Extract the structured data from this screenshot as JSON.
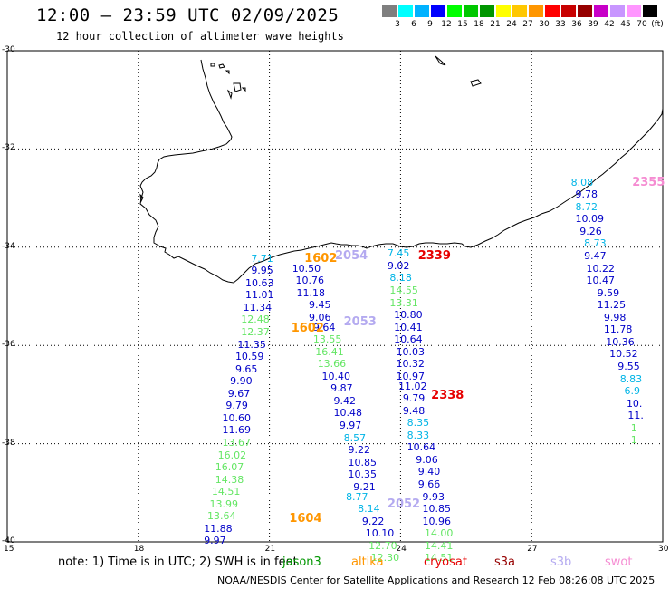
{
  "header": {
    "title": "12:00 – 23:59 UTC 02/09/2025",
    "subtitle": "12 hour collection of altimeter wave heights"
  },
  "colorbar": {
    "unit": "(ft)",
    "bins": [
      {
        "label": "3",
        "color": "#7f7f7f"
      },
      {
        "label": "6",
        "color": "#00ffff"
      },
      {
        "label": "9",
        "color": "#00b2ff"
      },
      {
        "label": "12",
        "color": "#0000ff"
      },
      {
        "label": "15",
        "color": "#00ff00"
      },
      {
        "label": "18",
        "color": "#00c800"
      },
      {
        "label": "21",
        "color": "#009600"
      },
      {
        "label": "24",
        "color": "#ffff00"
      },
      {
        "label": "27",
        "color": "#ffc800"
      },
      {
        "label": "30",
        "color": "#ff9600"
      },
      {
        "label": "33",
        "color": "#ff0000"
      },
      {
        "label": "36",
        "color": "#c80000"
      },
      {
        "label": "39",
        "color": "#960000"
      },
      {
        "label": "42",
        "color": "#c800c8"
      },
      {
        "label": "45",
        "color": "#c896ff"
      },
      {
        "label": "70",
        "color": "#ff96ff"
      },
      {
        "label": "",
        "color": "#000000"
      }
    ]
  },
  "map": {
    "lon_ticks": [
      "15",
      "18",
      "21",
      "24",
      "27",
      "30"
    ],
    "lat_ticks": [
      "-30",
      "-32",
      "-34",
      "-36",
      "-38",
      "-40"
    ]
  },
  "satellite_colors": {
    "dark_blue": "#0000c8",
    "cyan": "#00b4e6",
    "light_green": "#64e664",
    "orange": "#ff9600",
    "red": "#e60000",
    "lavender": "#b4aaf0",
    "pink": "#f58cd2"
  },
  "observations": [
    {
      "text": "7.71",
      "color": "cyan",
      "lon": 20.58,
      "lat": -34.22
    },
    {
      "text": "9.95",
      "color": "dark_blue",
      "lon": 20.58,
      "lat": -34.47
    },
    {
      "text": "10.63",
      "color": "dark_blue",
      "lon": 20.45,
      "lat": -34.72
    },
    {
      "text": "11.01",
      "color": "dark_blue",
      "lon": 20.45,
      "lat": -34.97
    },
    {
      "text": "11.34",
      "color": "dark_blue",
      "lon": 20.4,
      "lat": -35.22
    },
    {
      "text": "12.48",
      "color": "light_green",
      "lon": 20.35,
      "lat": -35.47
    },
    {
      "text": "12.37",
      "color": "light_green",
      "lon": 20.35,
      "lat": -35.72
    },
    {
      "text": "11.35",
      "color": "dark_blue",
      "lon": 20.27,
      "lat": -35.97
    },
    {
      "text": "10.59",
      "color": "dark_blue",
      "lon": 20.22,
      "lat": -36.22
    },
    {
      "text": "9.65",
      "color": "dark_blue",
      "lon": 20.22,
      "lat": -36.47
    },
    {
      "text": "9.90",
      "color": "dark_blue",
      "lon": 20.1,
      "lat": -36.72
    },
    {
      "text": "9.67",
      "color": "dark_blue",
      "lon": 20.05,
      "lat": -36.97
    },
    {
      "text": "9.79",
      "color": "dark_blue",
      "lon": 20.0,
      "lat": -37.22
    },
    {
      "text": "10.60",
      "color": "dark_blue",
      "lon": 19.92,
      "lat": -37.47
    },
    {
      "text": "11.69",
      "color": "dark_blue",
      "lon": 19.92,
      "lat": -37.72
    },
    {
      "text": "13.67",
      "color": "light_green",
      "lon": 19.92,
      "lat": -37.97
    },
    {
      "text": "16.02",
      "color": "light_green",
      "lon": 19.82,
      "lat": -38.22
    },
    {
      "text": "16.07",
      "color": "light_green",
      "lon": 19.76,
      "lat": -38.47
    },
    {
      "text": "14.38",
      "color": "light_green",
      "lon": 19.76,
      "lat": -38.72
    },
    {
      "text": "14.51",
      "color": "light_green",
      "lon": 19.68,
      "lat": -38.97
    },
    {
      "text": "13.99",
      "color": "light_green",
      "lon": 19.63,
      "lat": -39.22
    },
    {
      "text": "13.64",
      "color": "light_green",
      "lon": 19.58,
      "lat": -39.47
    },
    {
      "text": "11.88",
      "color": "dark_blue",
      "lon": 19.5,
      "lat": -39.72
    },
    {
      "text": "9.97",
      "color": "dark_blue",
      "lon": 19.5,
      "lat": -39.97
    },
    {
      "text": "10.50",
      "color": "dark_blue",
      "lon": 21.52,
      "lat": -34.42
    },
    {
      "text": "10.76",
      "color": "dark_blue",
      "lon": 21.6,
      "lat": -34.67
    },
    {
      "text": "11.18",
      "color": "dark_blue",
      "lon": 21.62,
      "lat": -34.92
    },
    {
      "text": "9.45",
      "color": "dark_blue",
      "lon": 21.9,
      "lat": -35.17
    },
    {
      "text": "9.06",
      "color": "dark_blue",
      "lon": 21.9,
      "lat": -35.42
    },
    {
      "text": "9.64",
      "color": "dark_blue",
      "lon": 22.0,
      "lat": -35.62
    },
    {
      "text": "13.55",
      "color": "light_green",
      "lon": 22.0,
      "lat": -35.87
    },
    {
      "text": "16.41",
      "color": "light_green",
      "lon": 22.05,
      "lat": -36.12
    },
    {
      "text": "13.66",
      "color": "light_green",
      "lon": 22.1,
      "lat": -36.37
    },
    {
      "text": "10.40",
      "color": "dark_blue",
      "lon": 22.2,
      "lat": -36.62
    },
    {
      "text": "9.87",
      "color": "dark_blue",
      "lon": 22.4,
      "lat": -36.87
    },
    {
      "text": "9.42",
      "color": "dark_blue",
      "lon": 22.47,
      "lat": -37.12
    },
    {
      "text": "10.48",
      "color": "dark_blue",
      "lon": 22.47,
      "lat": -37.37
    },
    {
      "text": "9.97",
      "color": "dark_blue",
      "lon": 22.6,
      "lat": -37.62
    },
    {
      "text": "8.57",
      "color": "cyan",
      "lon": 22.7,
      "lat": -37.87
    },
    {
      "text": "9.22",
      "color": "dark_blue",
      "lon": 22.8,
      "lat": -38.12
    },
    {
      "text": "10.85",
      "color": "dark_blue",
      "lon": 22.8,
      "lat": -38.37
    },
    {
      "text": "10.35",
      "color": "dark_blue",
      "lon": 22.8,
      "lat": -38.62
    },
    {
      "text": "9.21",
      "color": "dark_blue",
      "lon": 22.92,
      "lat": -38.87
    },
    {
      "text": "8.77",
      "color": "cyan",
      "lon": 22.75,
      "lat": -39.07
    },
    {
      "text": "8.14",
      "color": "cyan",
      "lon": 23.02,
      "lat": -39.32
    },
    {
      "text": "9.22",
      "color": "dark_blue",
      "lon": 23.12,
      "lat": -39.57
    },
    {
      "text": "10.10",
      "color": "dark_blue",
      "lon": 23.2,
      "lat": -39.82
    },
    {
      "text": "12.70",
      "color": "light_green",
      "lon": 23.27,
      "lat": -40.07
    },
    {
      "text": "12.30",
      "color": "light_green",
      "lon": 23.32,
      "lat": -40.32
    },
    {
      "text": "7.45",
      "color": "cyan",
      "lon": 23.7,
      "lat": -34.12
    },
    {
      "text": "9.02",
      "color": "dark_blue",
      "lon": 23.7,
      "lat": -34.37
    },
    {
      "text": "8.18",
      "color": "cyan",
      "lon": 23.75,
      "lat": -34.62
    },
    {
      "text": "14.55",
      "color": "light_green",
      "lon": 23.75,
      "lat": -34.87
    },
    {
      "text": "13.31",
      "color": "light_green",
      "lon": 23.75,
      "lat": -35.12
    },
    {
      "text": "10.80",
      "color": "dark_blue",
      "lon": 23.85,
      "lat": -35.37
    },
    {
      "text": "10.41",
      "color": "dark_blue",
      "lon": 23.85,
      "lat": -35.62
    },
    {
      "text": "10.64",
      "color": "dark_blue",
      "lon": 23.85,
      "lat": -35.87
    },
    {
      "text": "10.03",
      "color": "dark_blue",
      "lon": 23.9,
      "lat": -36.12
    },
    {
      "text": "10.32",
      "color": "dark_blue",
      "lon": 23.9,
      "lat": -36.37
    },
    {
      "text": "10.97",
      "color": "dark_blue",
      "lon": 23.9,
      "lat": -36.62
    },
    {
      "text": "11.02",
      "color": "dark_blue",
      "lon": 23.95,
      "lat": -36.82
    },
    {
      "text": "9.79",
      "color": "dark_blue",
      "lon": 24.05,
      "lat": -37.07
    },
    {
      "text": "9.48",
      "color": "dark_blue",
      "lon": 24.05,
      "lat": -37.32
    },
    {
      "text": "8.35",
      "color": "cyan",
      "lon": 24.15,
      "lat": -37.57
    },
    {
      "text": "8.33",
      "color": "cyan",
      "lon": 24.15,
      "lat": -37.82
    },
    {
      "text": "10.64",
      "color": "dark_blue",
      "lon": 24.15,
      "lat": -38.07
    },
    {
      "text": "9.06",
      "color": "dark_blue",
      "lon": 24.35,
      "lat": -38.32
    },
    {
      "text": "9.40",
      "color": "dark_blue",
      "lon": 24.4,
      "lat": -38.57
    },
    {
      "text": "9.66",
      "color": "dark_blue",
      "lon": 24.4,
      "lat": -38.82
    },
    {
      "text": "9.93",
      "color": "dark_blue",
      "lon": 24.5,
      "lat": -39.07
    },
    {
      "text": "10.85",
      "color": "dark_blue",
      "lon": 24.5,
      "lat": -39.32
    },
    {
      "text": "10.96",
      "color": "dark_blue",
      "lon": 24.5,
      "lat": -39.57
    },
    {
      "text": "14.00",
      "color": "light_green",
      "lon": 24.55,
      "lat": -39.82
    },
    {
      "text": "14.41",
      "color": "light_green",
      "lon": 24.55,
      "lat": -40.07
    },
    {
      "text": "14.51",
      "color": "light_green",
      "lon": 24.55,
      "lat": -40.32
    },
    {
      "text": "8.08",
      "color": "cyan",
      "lon": 27.9,
      "lat": -32.67
    },
    {
      "text": "9.78",
      "color": "dark_blue",
      "lon": 28.0,
      "lat": -32.92
    },
    {
      "text": "8.72",
      "color": "cyan",
      "lon": 28.0,
      "lat": -33.17
    },
    {
      "text": "10.09",
      "color": "dark_blue",
      "lon": 28.0,
      "lat": -33.42
    },
    {
      "text": "9.26",
      "color": "dark_blue",
      "lon": 28.1,
      "lat": -33.67
    },
    {
      "text": "8.73",
      "color": "cyan",
      "lon": 28.2,
      "lat": -33.92
    },
    {
      "text": "9.47",
      "color": "dark_blue",
      "lon": 28.2,
      "lat": -34.17
    },
    {
      "text": "10.22",
      "color": "dark_blue",
      "lon": 28.25,
      "lat": -34.42
    },
    {
      "text": "10.47",
      "color": "dark_blue",
      "lon": 28.25,
      "lat": -34.67
    },
    {
      "text": "9.59",
      "color": "dark_blue",
      "lon": 28.5,
      "lat": -34.92
    },
    {
      "text": "11.25",
      "color": "dark_blue",
      "lon": 28.5,
      "lat": -35.17
    },
    {
      "text": "9.98",
      "color": "dark_blue",
      "lon": 28.65,
      "lat": -35.42
    },
    {
      "text": "11.78",
      "color": "dark_blue",
      "lon": 28.65,
      "lat": -35.67
    },
    {
      "text": "10.36",
      "color": "dark_blue",
      "lon": 28.7,
      "lat": -35.92
    },
    {
      "text": "10.52",
      "color": "dark_blue",
      "lon": 28.78,
      "lat": -36.17
    },
    {
      "text": "9.55",
      "color": "dark_blue",
      "lon": 28.97,
      "lat": -36.42
    },
    {
      "text": "8.83",
      "color": "cyan",
      "lon": 29.02,
      "lat": -36.67
    },
    {
      "text": "6.9",
      "color": "cyan",
      "lon": 29.12,
      "lat": -36.92
    },
    {
      "text": "10.",
      "color": "dark_blue",
      "lon": 29.17,
      "lat": -37.17
    },
    {
      "text": "11.",
      "color": "dark_blue",
      "lon": 29.2,
      "lat": -37.42
    },
    {
      "text": "1",
      "color": "light_green",
      "lon": 29.27,
      "lat": -37.67
    },
    {
      "text": "1",
      "color": "light_green",
      "lon": 29.27,
      "lat": -37.92
    }
  ],
  "pass_times": [
    {
      "text": "1602",
      "color": "orange",
      "lon": 21.8,
      "lat": -34.22
    },
    {
      "text": "2054",
      "color": "lavender",
      "lon": 22.5,
      "lat": -34.17
    },
    {
      "text": "1602",
      "color": "orange",
      "lon": 21.5,
      "lat": -35.65
    },
    {
      "text": "2053",
      "color": "lavender",
      "lon": 22.7,
      "lat": -35.52
    },
    {
      "text": "2339",
      "color": "red",
      "lon": 24.4,
      "lat": -34.17
    },
    {
      "text": "2338",
      "color": "red",
      "lon": 24.7,
      "lat": -37.02
    },
    {
      "text": "2052",
      "color": "lavender",
      "lon": 23.7,
      "lat": -39.22
    },
    {
      "text": "1604",
      "color": "orange",
      "lon": 21.45,
      "lat": -39.52
    },
    {
      "text": "2355",
      "color": "pink",
      "lon": 29.3,
      "lat": -32.67
    }
  ],
  "note": "note:  1) Time is in UTC;  2) SWH is in feet",
  "satellites": [
    {
      "label": "jason3",
      "color": "#009600"
    },
    {
      "label": "altika",
      "color": "#ff9600"
    },
    {
      "label": "cryosat",
      "color": "#e60000"
    },
    {
      "label": "s3a",
      "color": "#960000"
    },
    {
      "label": "s3b",
      "color": "#b4aaf0"
    },
    {
      "label": "swot",
      "color": "#f58cd2"
    }
  ],
  "footer": "NOAA/NESDIS Center for Satellite Applications and Research     12 Feb 08:26:08 UTC 2025"
}
